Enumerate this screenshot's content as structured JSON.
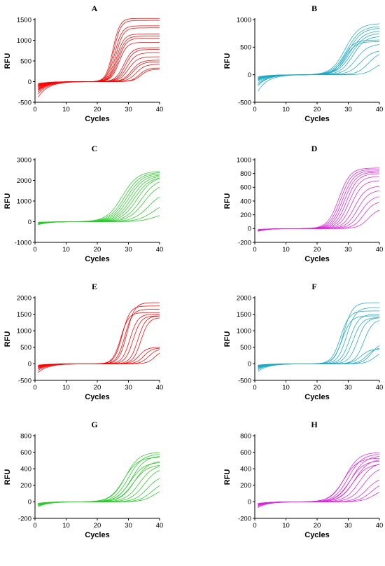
{
  "figure": {
    "description": ""
  },
  "chart_data": [
    {
      "panel": "A",
      "type": "line",
      "title": "A",
      "color": "#ff0000",
      "xlabel": "Cycles",
      "ylabel": "RFU",
      "xlim": [
        0,
        40
      ],
      "ylim": [
        -500,
        1500
      ],
      "xticks": [
        0,
        10,
        20,
        30,
        40
      ],
      "yticks": [
        -500,
        0,
        500,
        1000,
        1500
      ],
      "curves": [
        {
          "plateau": 1530,
          "midpoint": 25.0,
          "slope": 0.9,
          "baseline": -380
        },
        {
          "plateau": 1480,
          "midpoint": 25.3,
          "slope": 0.9,
          "baseline": -300
        },
        {
          "plateau": 1350,
          "midpoint": 25.6,
          "slope": 0.85,
          "baseline": -250
        },
        {
          "plateau": 1300,
          "midpoint": 26.0,
          "slope": 0.85,
          "baseline": -220
        },
        {
          "plateau": 1150,
          "midpoint": 26.2,
          "slope": 0.85,
          "baseline": -200
        },
        {
          "plateau": 1100,
          "midpoint": 26.5,
          "slope": 0.8,
          "baseline": -180
        },
        {
          "plateau": 1050,
          "midpoint": 26.8,
          "slope": 0.8,
          "baseline": -160
        },
        {
          "plateau": 950,
          "midpoint": 27.0,
          "slope": 0.8,
          "baseline": -150
        },
        {
          "plateau": 820,
          "midpoint": 28.5,
          "slope": 0.75,
          "baseline": -130
        },
        {
          "plateau": 780,
          "midpoint": 29.0,
          "slope": 0.75,
          "baseline": -120
        },
        {
          "plateau": 700,
          "midpoint": 29.5,
          "slope": 0.7,
          "baseline": -110
        },
        {
          "plateau": 600,
          "midpoint": 30.0,
          "slope": 0.7,
          "baseline": -100
        },
        {
          "plateau": 520,
          "midpoint": 31.0,
          "slope": 0.7,
          "baseline": -90
        },
        {
          "plateau": 480,
          "midpoint": 31.5,
          "slope": 0.7,
          "baseline": -80
        },
        {
          "plateau": 420,
          "midpoint": 32.5,
          "slope": 0.7,
          "baseline": -70
        },
        {
          "plateau": 330,
          "midpoint": 33.5,
          "slope": 0.8,
          "baseline": -60
        },
        {
          "plateau": 300,
          "midpoint": 34.0,
          "slope": 0.8,
          "baseline": -50
        }
      ]
    },
    {
      "panel": "B",
      "type": "line",
      "title": "B",
      "color": "#1aa8c4",
      "xlabel": "Cycles",
      "ylabel": "RFU",
      "xlim": [
        0,
        40
      ],
      "ylim": [
        -500,
        1000
      ],
      "xticks": [
        0,
        10,
        20,
        30,
        40
      ],
      "yticks": [
        -500,
        0,
        500,
        1000
      ],
      "curves": [
        {
          "plateau": 930,
          "midpoint": 29.0,
          "slope": 0.45,
          "baseline": -300
        },
        {
          "plateau": 880,
          "midpoint": 29.5,
          "slope": 0.45,
          "baseline": -200
        },
        {
          "plateau": 850,
          "midpoint": 30.0,
          "slope": 0.45,
          "baseline": -180
        },
        {
          "plateau": 800,
          "midpoint": 30.5,
          "slope": 0.45,
          "baseline": -150
        },
        {
          "plateau": 760,
          "midpoint": 31.0,
          "slope": 0.45,
          "baseline": -120
        },
        {
          "plateau": 700,
          "midpoint": 31.5,
          "slope": 0.5,
          "baseline": -100
        },
        {
          "plateau": 630,
          "midpoint": 28.5,
          "slope": 0.6,
          "baseline": -90
        },
        {
          "plateau": 600,
          "midpoint": 29.0,
          "slope": 0.6,
          "baseline": -80
        },
        {
          "plateau": 560,
          "midpoint": 32.5,
          "slope": 0.5,
          "baseline": -70
        },
        {
          "plateau": 450,
          "midpoint": 34.0,
          "slope": 0.5,
          "baseline": -60
        },
        {
          "plateau": 420,
          "midpoint": 36.5,
          "slope": 0.55,
          "baseline": -50
        },
        {
          "plateau": 250,
          "midpoint": 38.5,
          "slope": 0.6,
          "baseline": -40
        }
      ]
    },
    {
      "panel": "C",
      "type": "line",
      "title": "C",
      "color": "#22cc22",
      "xlabel": "Cycles",
      "ylabel": "RFU",
      "xlim": [
        0,
        40
      ],
      "ylim": [
        -1000,
        3000
      ],
      "xticks": [
        0,
        10,
        20,
        30,
        40
      ],
      "yticks": [
        -1000,
        0,
        1000,
        2000,
        3000
      ],
      "curves": [
        {
          "plateau": 2450,
          "midpoint": 28.0,
          "slope": 0.4,
          "baseline": -150
        },
        {
          "plateau": 2400,
          "midpoint": 28.8,
          "slope": 0.4,
          "baseline": -130
        },
        {
          "plateau": 2350,
          "midpoint": 29.5,
          "slope": 0.4,
          "baseline": -120
        },
        {
          "plateau": 2300,
          "midpoint": 30.2,
          "slope": 0.4,
          "baseline": -110
        },
        {
          "plateau": 2250,
          "midpoint": 31.0,
          "slope": 0.4,
          "baseline": -100
        },
        {
          "plateau": 2200,
          "midpoint": 31.8,
          "slope": 0.4,
          "baseline": -90
        },
        {
          "plateau": 2200,
          "midpoint": 32.8,
          "slope": 0.4,
          "baseline": -80
        },
        {
          "plateau": 2100,
          "midpoint": 34.0,
          "slope": 0.4,
          "baseline": -70
        },
        {
          "plateau": 1900,
          "midpoint": 35.0,
          "slope": 0.4,
          "baseline": -60
        },
        {
          "plateau": 1500,
          "midpoint": 36.5,
          "slope": 0.4,
          "baseline": -50
        },
        {
          "plateau": 1000,
          "midpoint": 38.0,
          "slope": 0.4,
          "baseline": -40
        },
        {
          "plateau": 500,
          "midpoint": 39.0,
          "slope": 0.4,
          "baseline": -30
        }
      ]
    },
    {
      "panel": "D",
      "type": "line",
      "title": "D",
      "color": "#dd22dd",
      "xlabel": "Cycles",
      "ylabel": "RFU",
      "xlim": [
        0,
        40
      ],
      "ylim": [
        -200,
        1000
      ],
      "xticks": [
        0,
        10,
        20,
        30,
        40
      ],
      "yticks": [
        -200,
        0,
        200,
        400,
        600,
        800,
        1000
      ],
      "curves": [
        {
          "plateau": 880,
          "midpoint": 27.0,
          "slope": 0.55,
          "baseline": -40
        },
        {
          "plateau": 860,
          "midpoint": 27.6,
          "slope": 0.55,
          "baseline": -35
        },
        {
          "plateau": 840,
          "midpoint": 28.2,
          "slope": 0.55,
          "baseline": -32
        },
        {
          "plateau": 820,
          "midpoint": 28.8,
          "slope": 0.55,
          "baseline": -30
        },
        {
          "plateau": 800,
          "midpoint": 29.5,
          "slope": 0.55,
          "baseline": -28
        },
        {
          "plateau": 760,
          "midpoint": 30.2,
          "slope": 0.55,
          "baseline": -26
        },
        {
          "plateau": 700,
          "midpoint": 31.0,
          "slope": 0.55,
          "baseline": -24
        },
        {
          "plateau": 620,
          "midpoint": 32.0,
          "slope": 0.55,
          "baseline": -22
        },
        {
          "plateau": 560,
          "midpoint": 33.0,
          "slope": 0.55,
          "baseline": -20
        },
        {
          "plateau": 480,
          "midpoint": 34.0,
          "slope": 0.55,
          "baseline": -18
        },
        {
          "plateau": 400,
          "midpoint": 35.0,
          "slope": 0.6,
          "baseline": -16
        },
        {
          "plateau": 300,
          "midpoint": 36.5,
          "slope": 0.6,
          "baseline": -14
        }
      ]
    },
    {
      "panel": "E",
      "type": "line",
      "title": "E",
      "color": "#ff0000",
      "xlabel": "Cycles",
      "ylabel": "RFU",
      "xlim": [
        0,
        40
      ],
      "ylim": [
        -500,
        2000
      ],
      "xticks": [
        0,
        10,
        20,
        30,
        40
      ],
      "yticks": [
        -500,
        0,
        500,
        1000,
        1500,
        2000
      ],
      "curves": [
        {
          "plateau": 1850,
          "midpoint": 29.5,
          "slope": 0.8,
          "baseline": -260
        },
        {
          "plateau": 1750,
          "midpoint": 28.0,
          "slope": 0.8,
          "baseline": -200
        },
        {
          "plateau": 1650,
          "midpoint": 28.8,
          "slope": 0.8,
          "baseline": -160
        },
        {
          "plateau": 1550,
          "midpoint": 27.5,
          "slope": 0.8,
          "baseline": -140
        },
        {
          "plateau": 1500,
          "midpoint": 30.5,
          "slope": 0.8,
          "baseline": -120
        },
        {
          "plateau": 1450,
          "midpoint": 33.0,
          "slope": 0.8,
          "baseline": -100
        },
        {
          "plateau": 1400,
          "midpoint": 34.0,
          "slope": 0.8,
          "baseline": -90
        },
        {
          "plateau": 1450,
          "midpoint": 31.5,
          "slope": 0.8,
          "baseline": -80
        },
        {
          "plateau": 500,
          "midpoint": 33.5,
          "slope": 0.8,
          "baseline": -70
        },
        {
          "plateau": 480,
          "midpoint": 35.0,
          "slope": 0.8,
          "baseline": -60
        },
        {
          "plateau": 450,
          "midpoint": 36.5,
          "slope": 0.8,
          "baseline": -50
        },
        {
          "plateau": 420,
          "midpoint": 38.5,
          "slope": 0.8,
          "baseline": -40
        }
      ]
    },
    {
      "panel": "F",
      "type": "line",
      "title": "F",
      "color": "#1aa8c4",
      "xlabel": "Cycles",
      "ylabel": "RFU",
      "xlim": [
        0,
        40
      ],
      "ylim": [
        -500,
        2000
      ],
      "xticks": [
        0,
        10,
        20,
        30,
        40
      ],
      "yticks": [
        -500,
        0,
        500,
        1000,
        1500,
        2000
      ],
      "curves": [
        {
          "plateau": 1850,
          "midpoint": 28.5,
          "slope": 0.7,
          "baseline": -230
        },
        {
          "plateau": 1700,
          "midpoint": 29.5,
          "slope": 0.7,
          "baseline": -180
        },
        {
          "plateau": 1600,
          "midpoint": 27.5,
          "slope": 0.7,
          "baseline": -150
        },
        {
          "plateau": 1500,
          "midpoint": 30.5,
          "slope": 0.7,
          "baseline": -130
        },
        {
          "plateau": 1450,
          "midpoint": 28.0,
          "slope": 0.7,
          "baseline": -110
        },
        {
          "plateau": 1400,
          "midpoint": 31.5,
          "slope": 0.7,
          "baseline": -100
        },
        {
          "plateau": 1400,
          "midpoint": 33.0,
          "slope": 0.7,
          "baseline": -90
        },
        {
          "plateau": 1350,
          "midpoint": 35.0,
          "slope": 0.7,
          "baseline": -80
        },
        {
          "plateau": 650,
          "midpoint": 37.5,
          "slope": 0.7,
          "baseline": -70
        },
        {
          "plateau": 500,
          "midpoint": 36.0,
          "slope": 0.7,
          "baseline": -60
        },
        {
          "plateau": 450,
          "midpoint": 34.0,
          "slope": 0.7,
          "baseline": -50
        },
        {
          "plateau": 400,
          "midpoint": 38.5,
          "slope": 0.7,
          "baseline": -40
        }
      ]
    },
    {
      "panel": "G",
      "type": "line",
      "title": "G",
      "color": "#22cc22",
      "xlabel": "Cycles",
      "ylabel": "RFU",
      "xlim": [
        0,
        40
      ],
      "ylim": [
        -200,
        800
      ],
      "xticks": [
        0,
        10,
        20,
        30,
        40
      ],
      "yticks": [
        -200,
        0,
        200,
        400,
        600,
        800
      ],
      "curves": [
        {
          "plateau": 600,
          "midpoint": 29.0,
          "slope": 0.45,
          "baseline": -60
        },
        {
          "plateau": 580,
          "midpoint": 30.0,
          "slope": 0.45,
          "baseline": -50
        },
        {
          "plateau": 560,
          "midpoint": 31.0,
          "slope": 0.45,
          "baseline": -45
        },
        {
          "plateau": 540,
          "midpoint": 28.5,
          "slope": 0.45,
          "baseline": -40
        },
        {
          "plateau": 500,
          "midpoint": 32.0,
          "slope": 0.45,
          "baseline": -35
        },
        {
          "plateau": 480,
          "midpoint": 30.5,
          "slope": 0.45,
          "baseline": -30
        },
        {
          "plateau": 450,
          "midpoint": 33.5,
          "slope": 0.45,
          "baseline": -28
        },
        {
          "plateau": 450,
          "midpoint": 31.5,
          "slope": 0.45,
          "baseline": -26
        },
        {
          "plateau": 420,
          "midpoint": 35.0,
          "slope": 0.45,
          "baseline": -24
        },
        {
          "plateau": 320,
          "midpoint": 36.0,
          "slope": 0.5,
          "baseline": -22
        },
        {
          "plateau": 250,
          "midpoint": 37.5,
          "slope": 0.5,
          "baseline": -20
        },
        {
          "plateau": 180,
          "midpoint": 38.5,
          "slope": 0.5,
          "baseline": -18
        }
      ]
    },
    {
      "panel": "H",
      "type": "line",
      "title": "H",
      "color": "#dd22dd",
      "xlabel": "Cycles",
      "ylabel": "RFU",
      "xlim": [
        0,
        40
      ],
      "ylim": [
        -200,
        800
      ],
      "xticks": [
        0,
        10,
        20,
        30,
        40
      ],
      "yticks": [
        -200,
        0,
        200,
        400,
        600,
        800
      ],
      "curves": [
        {
          "plateau": 600,
          "midpoint": 29.0,
          "slope": 0.45,
          "baseline": -70
        },
        {
          "plateau": 580,
          "midpoint": 30.0,
          "slope": 0.45,
          "baseline": -60
        },
        {
          "plateau": 560,
          "midpoint": 31.0,
          "slope": 0.45,
          "baseline": -50
        },
        {
          "plateau": 530,
          "midpoint": 28.5,
          "slope": 0.45,
          "baseline": -45
        },
        {
          "plateau": 520,
          "midpoint": 32.0,
          "slope": 0.45,
          "baseline": -40
        },
        {
          "plateau": 500,
          "midpoint": 30.5,
          "slope": 0.45,
          "baseline": -35
        },
        {
          "plateau": 480,
          "midpoint": 33.5,
          "slope": 0.45,
          "baseline": -30
        },
        {
          "plateau": 460,
          "midpoint": 31.5,
          "slope": 0.45,
          "baseline": -28
        },
        {
          "plateau": 430,
          "midpoint": 35.0,
          "slope": 0.45,
          "baseline": -26
        },
        {
          "plateau": 300,
          "midpoint": 36.0,
          "slope": 0.5,
          "baseline": -24
        },
        {
          "plateau": 250,
          "midpoint": 37.5,
          "slope": 0.5,
          "baseline": -22
        },
        {
          "plateau": 170,
          "midpoint": 38.5,
          "slope": 0.5,
          "baseline": -20
        }
      ]
    }
  ]
}
